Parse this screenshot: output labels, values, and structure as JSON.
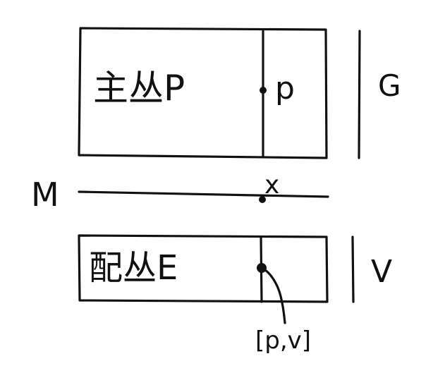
{
  "principal_bundle": {
    "label": "主丛P",
    "point_label": "p",
    "group_label": "G"
  },
  "base_manifold": {
    "label": "M",
    "point_label": "x"
  },
  "associated_bundle": {
    "label": "配丛E",
    "fiber_label": "V",
    "point_label": "[p,v]"
  },
  "colors": {
    "ink": "#111111",
    "background": "#ffffff"
  }
}
